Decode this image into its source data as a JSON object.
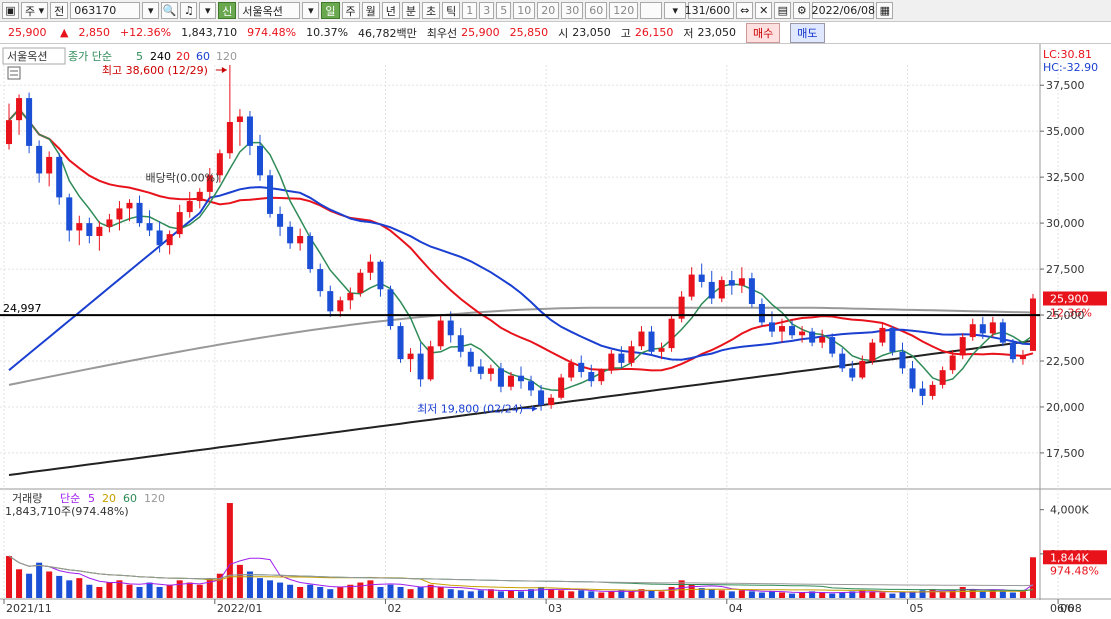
{
  "toolbar": {
    "period": "주",
    "prev_label": "전",
    "code": "063170",
    "badge": "신",
    "name": "서울옥션",
    "buttons": [
      "일",
      "주",
      "월",
      "년",
      "분",
      "초",
      "틱"
    ],
    "intervals": [
      "1",
      "3",
      "5",
      "10",
      "20",
      "30",
      "60",
      "120"
    ],
    "count": "131/600",
    "date": "2022/06/08"
  },
  "quote": {
    "price": "25,900",
    "change": "2,850",
    "change_pct": "+12.36%",
    "volume": "1,843,710",
    "volume_ratio": "974.48%",
    "turnover_rate": "10.37%",
    "amount": "46,782백만",
    "ask_label": "최우선",
    "ask": "25,900",
    "bid": "25,850",
    "open_label": "시",
    "open": "23,050",
    "high_label": "고",
    "high": "26,150",
    "low_label": "저",
    "low": "23,050",
    "buy": "매수",
    "sell": "매도"
  },
  "chart_data": {
    "type": "candlestick",
    "title": "서울옥션",
    "legend": {
      "price_label": "종가 단순",
      "periods": [
        "5",
        "240",
        "20",
        "60",
        "120"
      ]
    },
    "lc_label": "LC:30.81",
    "hc_label": "HC:-32.90",
    "y_ticks": [
      "37,500",
      "35,000",
      "32,500",
      "30,000",
      "27,500",
      "25,000",
      "22,500",
      "20,000",
      "17,500"
    ],
    "ylim": [
      15700,
      38600
    ],
    "x_ticks": [
      "2021/11",
      "2022/01",
      "02",
      "03",
      "04",
      "05",
      "06",
      "06/08"
    ],
    "annotations": {
      "high": "최고 38,600 (12/29)",
      "low": "최저 19,800 (02/24)",
      "dividend": "배당락(0.00%)",
      "hline_value": 24997,
      "hline_label": "24,997"
    },
    "current_price_label": "25,900",
    "current_change_label": "12.36%",
    "candles": [
      [
        34300,
        36500,
        34000,
        35600
      ],
      [
        35600,
        37000,
        34800,
        36800
      ],
      [
        36800,
        37100,
        33800,
        34200
      ],
      [
        34200,
        34500,
        32200,
        32700
      ],
      [
        32700,
        33900,
        32000,
        33600
      ],
      [
        33600,
        33800,
        31000,
        31400
      ],
      [
        31400,
        31600,
        29000,
        29600
      ],
      [
        29600,
        30400,
        28800,
        30000
      ],
      [
        30000,
        30300,
        28900,
        29300
      ],
      [
        29300,
        30100,
        28500,
        29800
      ],
      [
        29800,
        30500,
        29500,
        30200
      ],
      [
        30200,
        31200,
        29600,
        30800
      ],
      [
        30800,
        31300,
        30100,
        31100
      ],
      [
        31100,
        31500,
        29800,
        30000
      ],
      [
        30000,
        30700,
        29300,
        29600
      ],
      [
        29600,
        30100,
        28400,
        28800
      ],
      [
        28800,
        29600,
        28300,
        29400
      ],
      [
        29400,
        31000,
        29200,
        30600
      ],
      [
        30600,
        31700,
        30300,
        31200
      ],
      [
        31200,
        31900,
        30800,
        31700
      ],
      [
        31700,
        33000,
        31300,
        32600
      ],
      [
        32600,
        34000,
        32200,
        33800
      ],
      [
        33800,
        38600,
        33500,
        35500
      ],
      [
        35500,
        36200,
        34200,
        35800
      ],
      [
        35800,
        36100,
        33700,
        34200
      ],
      [
        34200,
        34800,
        32300,
        32600
      ],
      [
        32600,
        32900,
        30300,
        30500
      ],
      [
        30500,
        30900,
        29300,
        29800
      ],
      [
        29800,
        30100,
        28600,
        28900
      ],
      [
        28900,
        29700,
        28500,
        29300
      ],
      [
        29300,
        29500,
        27300,
        27500
      ],
      [
        27500,
        27800,
        26000,
        26300
      ],
      [
        26300,
        26600,
        24900,
        25200
      ],
      [
        25200,
        26000,
        24900,
        25800
      ],
      [
        25800,
        26500,
        25300,
        26200
      ],
      [
        26200,
        27500,
        26000,
        27300
      ],
      [
        27300,
        28300,
        26900,
        27900
      ],
      [
        27900,
        28000,
        26000,
        26400
      ],
      [
        26400,
        26600,
        24200,
        24400
      ],
      [
        24400,
        24600,
        22400,
        22600
      ],
      [
        22600,
        23200,
        21900,
        22900
      ],
      [
        22900,
        23500,
        21100,
        21500
      ],
      [
        21500,
        23600,
        21400,
        23300
      ],
      [
        23300,
        25000,
        23100,
        24700
      ],
      [
        24700,
        25200,
        23500,
        23900
      ],
      [
        23900,
        24300,
        22700,
        23000
      ],
      [
        23000,
        23200,
        21900,
        22200
      ],
      [
        22200,
        22600,
        21500,
        21800
      ],
      [
        21800,
        22300,
        21400,
        22100
      ],
      [
        22100,
        22400,
        20800,
        21100
      ],
      [
        21100,
        21900,
        20900,
        21700
      ],
      [
        21700,
        22200,
        21000,
        21400
      ],
      [
        21400,
        21700,
        20600,
        20900
      ],
      [
        20900,
        21200,
        19800,
        20100
      ],
      [
        20100,
        20700,
        19900,
        20500
      ],
      [
        20500,
        21800,
        20400,
        21600
      ],
      [
        21600,
        22600,
        21400,
        22400
      ],
      [
        22400,
        22800,
        21600,
        21900
      ],
      [
        21900,
        22300,
        21100,
        21400
      ],
      [
        21400,
        22100,
        21200,
        22000
      ],
      [
        22000,
        23100,
        21800,
        22900
      ],
      [
        22900,
        23300,
        22100,
        22400
      ],
      [
        22400,
        23600,
        22200,
        23300
      ],
      [
        23300,
        24400,
        23100,
        24100
      ],
      [
        24100,
        24400,
        22800,
        23000
      ],
      [
        23000,
        23500,
        22600,
        23200
      ],
      [
        23200,
        25000,
        23000,
        24800
      ],
      [
        24800,
        26300,
        24600,
        26000
      ],
      [
        26000,
        27600,
        25800,
        27200
      ],
      [
        27200,
        27800,
        26500,
        26800
      ],
      [
        26800,
        27400,
        25600,
        25900
      ],
      [
        25900,
        27100,
        25700,
        26900
      ],
      [
        26900,
        27400,
        26100,
        26600
      ],
      [
        26600,
        27600,
        26200,
        27000
      ],
      [
        27000,
        27300,
        25400,
        25600
      ],
      [
        25600,
        25900,
        24400,
        24600
      ],
      [
        24600,
        25200,
        23800,
        24100
      ],
      [
        24100,
        24800,
        23500,
        24400
      ],
      [
        24400,
        24700,
        23700,
        23900
      ],
      [
        23900,
        24400,
        23500,
        24100
      ],
      [
        24100,
        24300,
        23300,
        23500
      ],
      [
        23500,
        24200,
        23200,
        23800
      ],
      [
        23800,
        24000,
        22700,
        22900
      ],
      [
        22900,
        23200,
        21900,
        22100
      ],
      [
        22100,
        22500,
        21400,
        21600
      ],
      [
        21600,
        22800,
        21500,
        22500
      ],
      [
        22500,
        23700,
        22300,
        23500
      ],
      [
        23500,
        24600,
        23300,
        24300
      ],
      [
        24300,
        24400,
        22800,
        23000
      ],
      [
        23000,
        23500,
        21800,
        22100
      ],
      [
        22100,
        22500,
        20800,
        21000
      ],
      [
        21000,
        21400,
        20100,
        20600
      ],
      [
        20600,
        21400,
        20400,
        21200
      ],
      [
        21200,
        22200,
        21000,
        22000
      ],
      [
        22000,
        23100,
        21800,
        22800
      ],
      [
        22800,
        24000,
        22600,
        23800
      ],
      [
        23800,
        24800,
        23600,
        24500
      ],
      [
        24500,
        24900,
        23700,
        24000
      ],
      [
        24000,
        24900,
        23800,
        24600
      ],
      [
        24600,
        24800,
        23300,
        23500
      ],
      [
        23500,
        23700,
        22400,
        22600
      ],
      [
        22600,
        23100,
        22300,
        22800
      ],
      [
        23050,
        26150,
        23050,
        25900
      ]
    ],
    "volume_panel": {
      "legend": {
        "label": "거래량",
        "ma": "단순",
        "periods": [
          "5",
          "20",
          "60",
          "120"
        ]
      },
      "value_label": "1,843,710주(974.48%)",
      "y_ticks": [
        "4,000K",
        "2,000K"
      ],
      "ylim": [
        0,
        4800
      ],
      "current_label": "1,844K",
      "current_pct": "974.48%",
      "values": [
        1900,
        1300,
        1100,
        1600,
        1200,
        1000,
        800,
        900,
        600,
        500,
        700,
        800,
        600,
        500,
        700,
        500,
        600,
        800,
        700,
        600,
        900,
        1100,
        4300,
        1500,
        1200,
        900,
        800,
        700,
        600,
        500,
        600,
        500,
        400,
        500,
        600,
        700,
        800,
        500,
        600,
        500,
        400,
        500,
        600,
        500,
        400,
        350,
        300,
        350,
        400,
        300,
        350,
        300,
        400,
        500,
        400,
        350,
        300,
        350,
        300,
        250,
        300,
        350,
        300,
        400,
        350,
        300,
        500,
        800,
        600,
        450,
        400,
        350,
        300,
        350,
        300,
        250,
        300,
        250,
        200,
        250,
        300,
        250,
        200,
        250,
        300,
        350,
        300,
        250,
        200,
        250,
        300,
        350,
        400,
        300,
        350,
        500,
        400,
        300,
        350,
        300,
        250,
        300,
        1844
      ]
    }
  }
}
